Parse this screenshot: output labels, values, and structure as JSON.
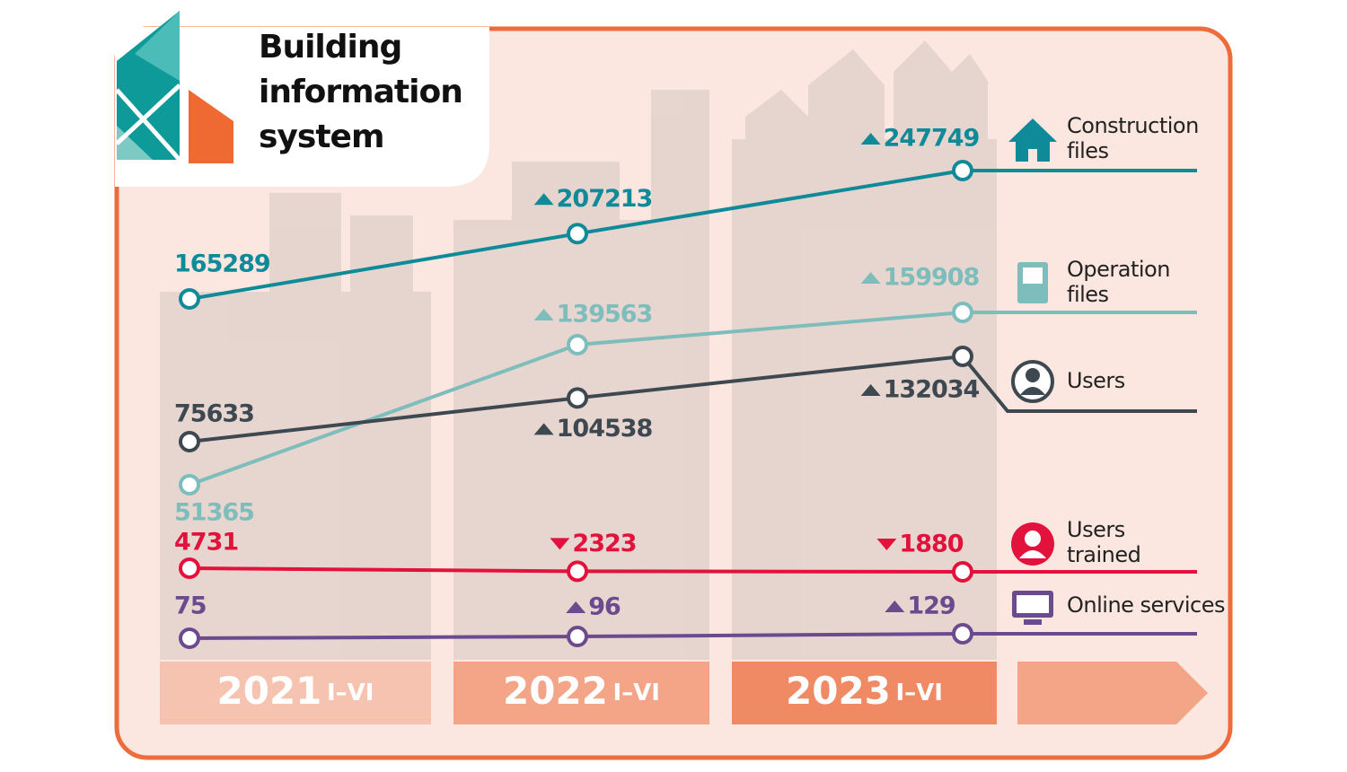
{
  "chart_data": {
    "type": "line",
    "title": "Building information system",
    "categories": [
      "2021",
      "2022",
      "2023"
    ],
    "period": "I–VI",
    "series": [
      {
        "name": "Construction files",
        "color": "#0f8a99",
        "values": [
          165289,
          207213,
          247749
        ]
      },
      {
        "name": "Operation files",
        "color": "#7dbdbc",
        "values": [
          51365,
          139563,
          159908
        ]
      },
      {
        "name": "Users",
        "color": "#3d4850",
        "values": [
          75633,
          104538,
          132034
        ]
      },
      {
        "name": "Users trained",
        "color": "#e3123c",
        "values": [
          4731,
          2323,
          1880
        ]
      },
      {
        "name": "Online services",
        "color": "#6b4a8e",
        "values": [
          75,
          96,
          129
        ]
      }
    ]
  }
}
